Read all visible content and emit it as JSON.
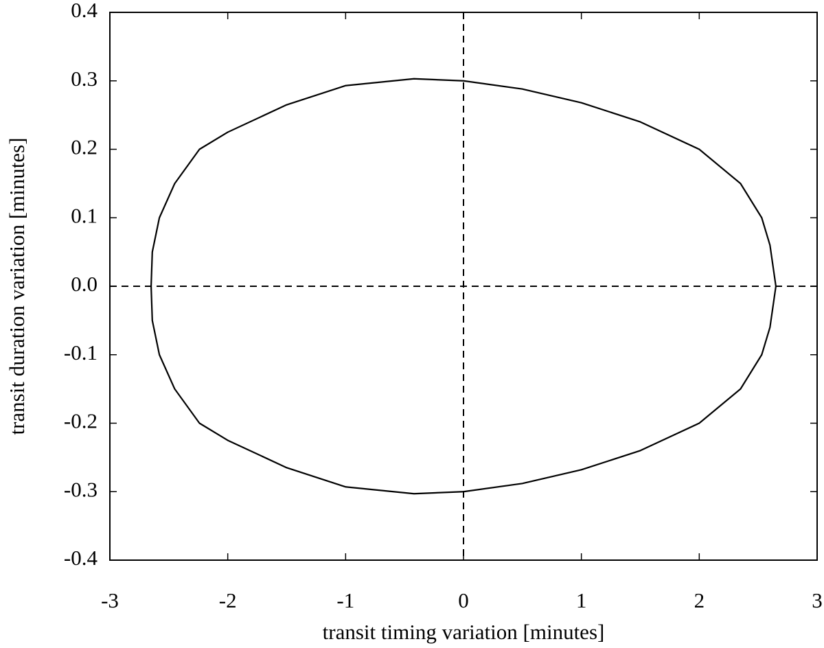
{
  "chart_data": {
    "type": "line",
    "x_label": "transit timing variation [minutes]",
    "y_label": "transit duration variation [minutes]",
    "x": [
      2.65,
      2.6,
      2.53,
      2.35,
      2.0,
      1.5,
      1.0,
      0.5,
      0,
      -0.42,
      -1.0,
      -1.5,
      -2.0,
      -2.24,
      -2.45,
      -2.58,
      -2.64,
      -2.65,
      -2.64,
      -2.58,
      -2.45,
      -2.24,
      -2.0,
      -1.5,
      -1.0,
      -0.42,
      0,
      0.5,
      1.0,
      1.5,
      2.0,
      2.35,
      2.53,
      2.6,
      2.65
    ],
    "values": [
      0,
      0.06,
      0.1,
      0.15,
      0.2,
      0.24,
      0.268,
      0.288,
      0.3,
      0.303,
      0.293,
      0.265,
      0.225,
      0.2,
      0.15,
      0.1,
      0.05,
      0,
      -0.05,
      -0.1,
      -0.15,
      -0.2,
      -0.225,
      -0.265,
      -0.293,
      -0.303,
      -0.3,
      -0.288,
      -0.268,
      -0.24,
      -0.2,
      -0.15,
      -0.1,
      -0.06,
      0
    ],
    "color": "#000000",
    "xlim": [
      -3,
      3
    ],
    "ylim": [
      -0.4,
      0.4
    ],
    "xticks": [
      -3,
      -2,
      -1,
      0,
      1,
      2,
      3
    ],
    "yticks": [
      -0.4,
      -0.3,
      -0.2,
      -0.1,
      {
        "value": 0,
        "label": "0.0"
      },
      0.1,
      0.2,
      0.3,
      0.4
    ],
    "reference_lines": {
      "x": 0,
      "y": 0
    },
    "grid": false
  }
}
